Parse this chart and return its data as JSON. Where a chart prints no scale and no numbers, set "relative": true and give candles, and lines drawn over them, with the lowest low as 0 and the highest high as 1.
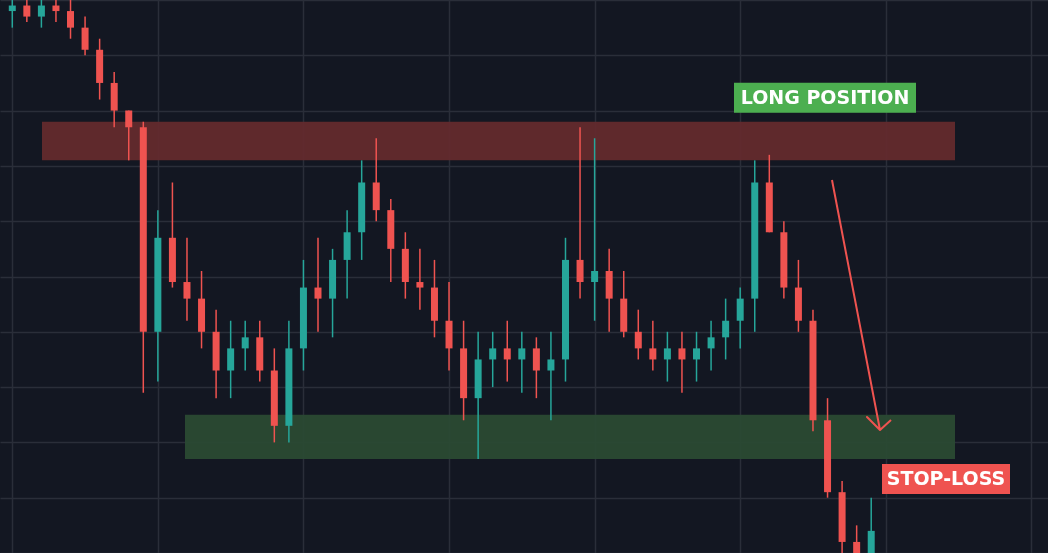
{
  "chart_data": {
    "type": "candlestick",
    "relative": true,
    "grid": true,
    "categories": [
      null,
      null,
      null,
      null,
      null,
      null,
      null,
      null,
      null,
      null,
      null,
      null,
      null,
      null,
      null,
      null,
      null,
      null,
      null,
      null,
      null,
      null,
      null,
      null,
      null,
      null,
      null,
      null,
      null,
      null,
      null,
      null,
      null,
      null,
      null,
      null,
      null,
      null,
      null,
      null,
      null,
      null,
      null,
      null,
      null,
      null,
      null,
      null,
      null,
      null,
      null,
      null,
      null,
      null,
      null,
      null,
      null,
      null,
      null,
      null
    ],
    "ohlc": [
      [
        0.98,
        1.0,
        0.95,
        0.99
      ],
      [
        0.99,
        1.0,
        0.96,
        0.97
      ],
      [
        0.97,
        1.0,
        0.95,
        0.99
      ],
      [
        0.99,
        1.0,
        0.96,
        0.98
      ],
      [
        0.98,
        1.0,
        0.93,
        0.95
      ],
      [
        0.95,
        0.97,
        0.9,
        0.91
      ],
      [
        0.91,
        0.93,
        0.82,
        0.85
      ],
      [
        0.85,
        0.87,
        0.77,
        0.8
      ],
      [
        0.8,
        0.8,
        0.71,
        0.77
      ],
      [
        0.77,
        0.78,
        0.29,
        0.4
      ],
      [
        0.4,
        0.62,
        0.31,
        0.57
      ],
      [
        0.57,
        0.67,
        0.48,
        0.49
      ],
      [
        0.49,
        0.57,
        0.42,
        0.46
      ],
      [
        0.46,
        0.51,
        0.37,
        0.4
      ],
      [
        0.4,
        0.44,
        0.28,
        0.33
      ],
      [
        0.33,
        0.42,
        0.28,
        0.37
      ],
      [
        0.37,
        0.42,
        0.33,
        0.39
      ],
      [
        0.39,
        0.42,
        0.31,
        0.33
      ],
      [
        0.33,
        0.37,
        0.2,
        0.23
      ],
      [
        0.23,
        0.42,
        0.2,
        0.37
      ],
      [
        0.37,
        0.53,
        0.33,
        0.48
      ],
      [
        0.48,
        0.57,
        0.4,
        0.46
      ],
      [
        0.46,
        0.55,
        0.39,
        0.53
      ],
      [
        0.53,
        0.62,
        0.46,
        0.58
      ],
      [
        0.58,
        0.71,
        0.53,
        0.67
      ],
      [
        0.67,
        0.75,
        0.6,
        0.62
      ],
      [
        0.62,
        0.64,
        0.49,
        0.55
      ],
      [
        0.55,
        0.58,
        0.46,
        0.49
      ],
      [
        0.49,
        0.55,
        0.44,
        0.48
      ],
      [
        0.48,
        0.53,
        0.39,
        0.42
      ],
      [
        0.42,
        0.49,
        0.33,
        0.37
      ],
      [
        0.37,
        0.42,
        0.24,
        0.28
      ],
      [
        0.28,
        0.4,
        0.17,
        0.35
      ],
      [
        0.35,
        0.4,
        0.3,
        0.37
      ],
      [
        0.37,
        0.42,
        0.31,
        0.35
      ],
      [
        0.35,
        0.4,
        0.29,
        0.37
      ],
      [
        0.37,
        0.39,
        0.28,
        0.33
      ],
      [
        0.33,
        0.4,
        0.24,
        0.35
      ],
      [
        0.35,
        0.57,
        0.31,
        0.53
      ],
      [
        0.53,
        0.77,
        0.46,
        0.49
      ],
      [
        0.49,
        0.75,
        0.42,
        0.51
      ],
      [
        0.51,
        0.55,
        0.4,
        0.46
      ],
      [
        0.46,
        0.51,
        0.39,
        0.4
      ],
      [
        0.4,
        0.44,
        0.35,
        0.37
      ],
      [
        0.37,
        0.42,
        0.33,
        0.35
      ],
      [
        0.35,
        0.4,
        0.31,
        0.37
      ],
      [
        0.37,
        0.4,
        0.29,
        0.35
      ],
      [
        0.35,
        0.4,
        0.31,
        0.37
      ],
      [
        0.37,
        0.42,
        0.33,
        0.39
      ],
      [
        0.39,
        0.46,
        0.35,
        0.42
      ],
      [
        0.42,
        0.48,
        0.37,
        0.46
      ],
      [
        0.46,
        0.71,
        0.4,
        0.67
      ],
      [
        0.67,
        0.72,
        0.58,
        0.58
      ],
      [
        0.58,
        0.6,
        0.46,
        0.48
      ],
      [
        0.48,
        0.53,
        0.4,
        0.42
      ],
      [
        0.42,
        0.44,
        0.22,
        0.24
      ],
      [
        0.24,
        0.28,
        0.1,
        0.11
      ],
      [
        0.11,
        0.13,
        0.0,
        0.02
      ],
      [
        0.02,
        0.05,
        0.0,
        0.0
      ],
      [
        0.0,
        0.1,
        0.0,
        0.04
      ]
    ],
    "colors": [
      "#26a69a",
      "#ef5350",
      "#26a69a",
      "#ef5350",
      "#ef5350",
      "#ef5350",
      "#ef5350",
      "#ef5350",
      "#ef5350",
      "#ef5350",
      "#26a69a",
      "#ef5350",
      "#ef5350",
      "#ef5350",
      "#ef5350",
      "#26a69a",
      "#26a69a",
      "#ef5350",
      "#ef5350",
      "#26a69a",
      "#26a69a",
      "#ef5350",
      "#26a69a",
      "#26a69a",
      "#26a69a",
      "#ef5350",
      "#ef5350",
      "#ef5350",
      "#ef5350",
      "#ef5350",
      "#ef5350",
      "#ef5350",
      "#26a69a",
      "#26a69a",
      "#ef5350",
      "#26a69a",
      "#ef5350",
      "#26a69a",
      "#26a69a",
      "#ef5350",
      "#26a69a",
      "#ef5350",
      "#ef5350",
      "#ef5350",
      "#ef5350",
      "#26a69a",
      "#ef5350",
      "#26a69a",
      "#26a69a",
      "#26a69a",
      "#26a69a",
      "#26a69a",
      "#ef5350",
      "#ef5350",
      "#ef5350",
      "#ef5350",
      "#ef5350",
      "#ef5350",
      "#ef5350",
      "#26a69a"
    ],
    "bands": [
      {
        "axis": "y",
        "from": 0.71,
        "to": 0.78,
        "label": "LONG POSITION",
        "color": "#632a2d"
      },
      {
        "axis": "y",
        "from": 0.17,
        "to": 0.25,
        "label": "STOP-LOSS",
        "color": "#2a4a33"
      }
    ]
  }
}
